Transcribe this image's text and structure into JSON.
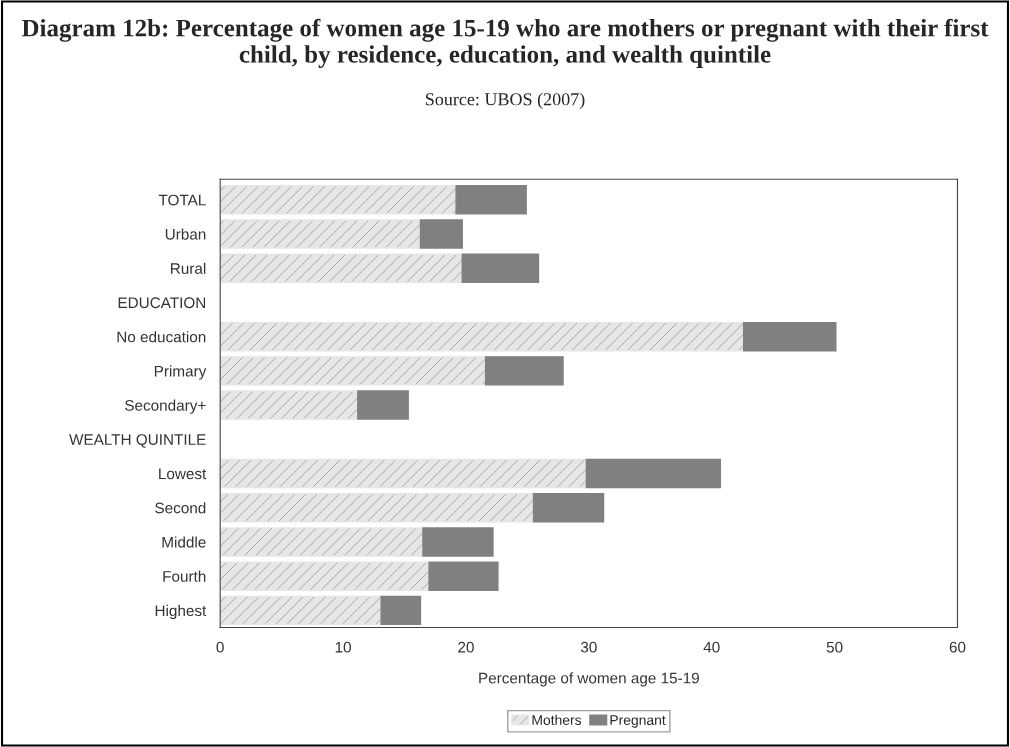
{
  "chart_data": {
    "type": "bar",
    "orientation": "horizontal",
    "stacked": true,
    "title": "Diagram 12b: Percentage of women age 15-19 who are mothers or pregnant with their first child, by residence, education, and wealth quintile",
    "subtitle": "Source: UBOS (2007)",
    "xlabel": "Percentage of women age 15-19",
    "categories": [
      "TOTAL",
      "Urban",
      "Rural",
      "EDUCATION",
      "No education",
      "Primary",
      "Secondary+",
      "WEALTH QUINTILE",
      "Lowest",
      "Second",
      "Middle",
      "Fourth",
      "Highest"
    ],
    "series": [
      {
        "name": "Mothers",
        "color": "#e6e6e6",
        "values": [
          19.2,
          16.3,
          19.7,
          null,
          42.6,
          21.6,
          11.2,
          null,
          29.8,
          25.5,
          16.5,
          17.0,
          13.1
        ]
      },
      {
        "name": "Pregnant",
        "color": "#808080",
        "values": [
          5.7,
          3.4,
          6.2,
          null,
          7.5,
          6.3,
          4.1,
          null,
          10.9,
          5.7,
          5.7,
          5.6,
          3.2
        ]
      }
    ],
    "xlim": [
      0,
      60
    ],
    "xticks": [
      0,
      10,
      20,
      30,
      40,
      50,
      60
    ],
    "grid": false,
    "legend": "bottom"
  }
}
